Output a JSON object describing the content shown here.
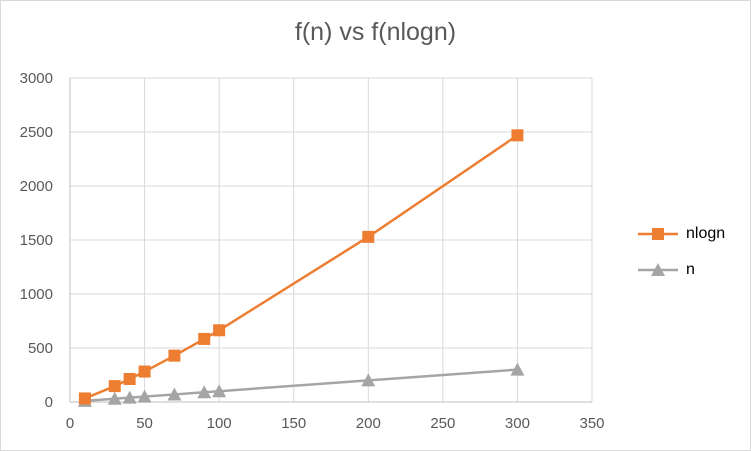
{
  "chart_data": {
    "type": "scatter",
    "title": "f(n) vs f(nlogn)",
    "xlabel": "",
    "ylabel": "",
    "xlim": [
      0,
      350
    ],
    "ylim": [
      0,
      3000
    ],
    "x_ticks": [
      0,
      50,
      100,
      150,
      200,
      250,
      300,
      350
    ],
    "y_ticks": [
      0,
      500,
      1000,
      1500,
      2000,
      2500,
      3000
    ],
    "grid": true,
    "legend_position": "right",
    "series": [
      {
        "name": "nlogn",
        "color": "#ed7d31",
        "marker": "square",
        "x": [
          10,
          30,
          40,
          50,
          70,
          90,
          100,
          200,
          300
        ],
        "y": [
          33,
          147,
          213,
          282,
          429,
          584,
          664,
          1529,
          2469
        ]
      },
      {
        "name": "n",
        "color": "#a5a5a5",
        "marker": "triangle",
        "x": [
          10,
          30,
          40,
          50,
          70,
          90,
          100,
          200,
          300
        ],
        "y": [
          10,
          30,
          40,
          50,
          70,
          90,
          100,
          200,
          300
        ]
      }
    ]
  }
}
